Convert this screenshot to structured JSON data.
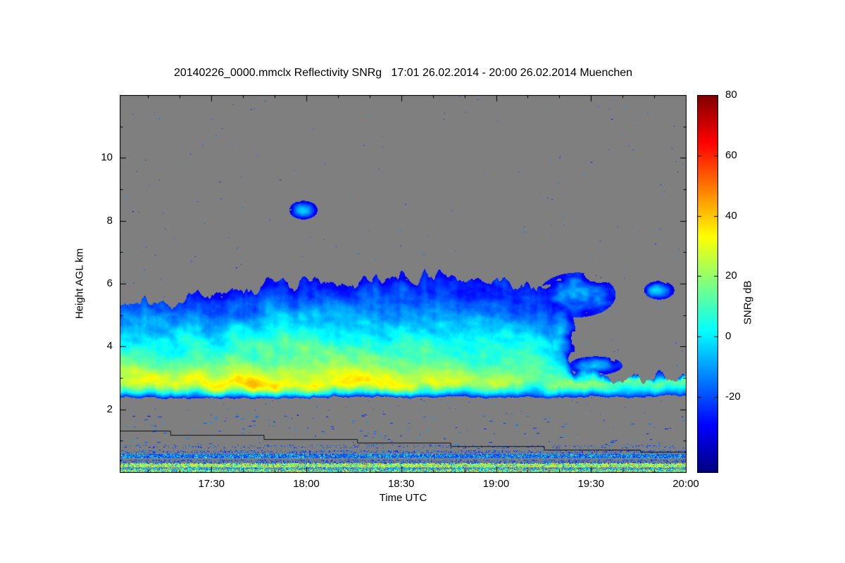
{
  "chart_data": {
    "type": "heatmap",
    "title": "20140226_0000.mmclx Reflectivity SNRg   17:01 26.02.2014 - 20:00 26.02.2014 Muenchen",
    "xlabel": "Time UTC",
    "ylabel": "Height AGL km",
    "colorbar_label": "SNRg dB",
    "colormap": "jet",
    "value_range_db": [
      -45,
      80
    ],
    "colorbar_ticks": [
      80,
      60,
      40,
      20,
      0,
      -20
    ],
    "x_axis": {
      "start_label": "17:01",
      "end_label": "20:00",
      "duration_min": 179,
      "ticks": [
        {
          "minutes": 29,
          "label": "17:30"
        },
        {
          "minutes": 59,
          "label": "18:00"
        },
        {
          "minutes": 89,
          "label": "18:30"
        },
        {
          "minutes": 119,
          "label": "19:00"
        },
        {
          "minutes": 149,
          "label": "19:30"
        },
        {
          "minutes": 179,
          "label": "20:00"
        }
      ],
      "minor_tick_every_min": 10
    },
    "y_axis": {
      "range_km": [
        0,
        12
      ],
      "ticks": [
        2,
        4,
        6,
        8,
        10
      ],
      "minor_tick_every_km": 1
    },
    "colors": {
      "no_data_gray": "#7f7f7f",
      "frame": "#000000",
      "page_bg": "#ffffff"
    },
    "cloud_layer": {
      "t_frac": [
        0.0,
        0.08,
        0.16,
        0.25,
        0.33,
        0.41,
        0.5,
        0.58,
        0.665,
        0.72,
        0.76,
        0.8,
        0.84,
        0.89,
        0.94,
        1.0
      ],
      "base_km": [
        2.4,
        2.35,
        2.38,
        2.35,
        2.38,
        2.42,
        2.38,
        2.42,
        2.38,
        2.4,
        2.38,
        2.4,
        2.42,
        2.4,
        2.42,
        2.45
      ],
      "top_km": [
        5.3,
        5.55,
        5.6,
        5.9,
        6.1,
        5.95,
        6.1,
        6.15,
        6.1,
        5.9,
        5.7,
        3.4,
        3.2,
        3.0,
        3.05,
        2.95
      ],
      "core_db": [
        32,
        31,
        33,
        35,
        35,
        32,
        29,
        26,
        22,
        19,
        16,
        14,
        12,
        10,
        11,
        9
      ]
    },
    "upper_patches": [
      {
        "t0": 0.303,
        "t1": 0.345,
        "h0": 8.1,
        "h1": 8.6,
        "db": -6
      },
      {
        "t0": 0.745,
        "t1": 0.8,
        "h0": 3.3,
        "h1": 5.3,
        "db": -3
      },
      {
        "t0": 0.75,
        "t1": 0.865,
        "h0": 5.05,
        "h1": 6.25,
        "db": -9
      },
      {
        "t0": 0.8,
        "t1": 0.88,
        "h0": 3.15,
        "h1": 3.65,
        "db": -13
      },
      {
        "t0": 0.93,
        "t1": 0.975,
        "h0": 5.55,
        "h1": 6.05,
        "db": -8
      }
    ],
    "clutter_palettes": {
      "mixed_bright": [
        [
          -20,
          0,
          0.3
        ],
        [
          0,
          20,
          0.3
        ],
        [
          20,
          45,
          0.4
        ]
      ],
      "mixed": [
        [
          -25,
          -5,
          0.5
        ],
        [
          0,
          25,
          0.5
        ]
      ],
      "bright": [
        [
          -15,
          5,
          0.2
        ],
        [
          10,
          30,
          0.45
        ],
        [
          25,
          45,
          0.35
        ]
      ],
      "blue": [
        [
          -30,
          -10,
          1
        ]
      ],
      "blue_cyan": [
        [
          -28,
          -8,
          0.8
        ],
        [
          0,
          15,
          0.2
        ]
      ]
    },
    "ground_clutter_bands": [
      {
        "h0": 0.03,
        "h1": 0.1,
        "density": 0.8,
        "palette": "mixed_bright"
      },
      {
        "h0": 0.1,
        "h1": 0.17,
        "density": 0.45,
        "palette": "mixed"
      },
      {
        "h0": 0.17,
        "h1": 0.28,
        "density": 0.9,
        "palette": "bright"
      },
      {
        "h0": 0.28,
        "h1": 0.4,
        "density": 0.3,
        "palette": "blue"
      },
      {
        "h0": 0.46,
        "h1": 0.58,
        "density": 0.85,
        "palette": "blue_cyan"
      },
      {
        "h0": 0.62,
        "h1": 0.7,
        "density": 0.22,
        "palette": "blue"
      },
      {
        "h0": 0.78,
        "h1": 0.88,
        "density": 0.1,
        "palette": "blue"
      }
    ],
    "boundary_line_km": [
      [
        0.0,
        1.33
      ],
      [
        0.09,
        1.33
      ],
      [
        0.09,
        1.18
      ],
      [
        0.255,
        1.18
      ],
      [
        0.255,
        1.06
      ],
      [
        0.42,
        1.06
      ],
      [
        0.42,
        0.93
      ],
      [
        0.585,
        0.93
      ],
      [
        0.585,
        0.82
      ],
      [
        0.75,
        0.82
      ],
      [
        0.75,
        0.72
      ],
      [
        0.92,
        0.72
      ],
      [
        0.92,
        0.64
      ],
      [
        1.0,
        0.64
      ]
    ],
    "speckle": {
      "uniform_count": 260,
      "dash_count": 130,
      "subcloud_count": 40,
      "db_range": [
        -30,
        -8
      ]
    }
  }
}
